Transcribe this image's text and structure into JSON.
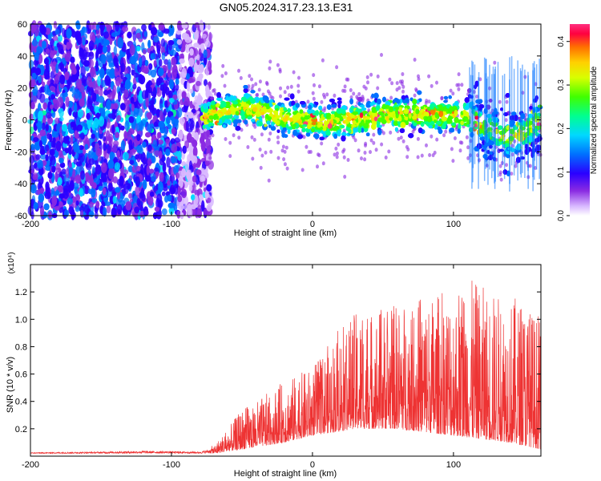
{
  "figure": {
    "title": "GN05.2024.317.23.13.E31"
  },
  "chart_data": [
    {
      "type": "heatmap",
      "xlabel": "Height of straight line (km)",
      "ylabel": "Frequency (Hz)",
      "xlim": [
        -200,
        162
      ],
      "ylim": [
        -60,
        60
      ],
      "x_ticks": [
        -200,
        -100,
        0,
        100
      ],
      "y_ticks": [
        -60,
        -40,
        -20,
        0,
        20,
        40,
        60
      ],
      "colorbar": {
        "label": "Normalized spectral amplitude",
        "range": [
          0,
          0.44
        ],
        "ticks": [
          0.0,
          0.1,
          0.2,
          0.3,
          0.4
        ],
        "colormap": "rainbow"
      },
      "ridge": {
        "x": [
          -200,
          -150,
          -100,
          -75,
          -65,
          -50,
          -35,
          -20,
          -5,
          10,
          30,
          60,
          90,
          110,
          125,
          140,
          150,
          162
        ],
        "y": [
          0,
          0,
          0,
          2,
          5,
          8,
          5,
          1,
          0,
          -2,
          0,
          4,
          3,
          2,
          -5,
          -12,
          -8,
          0
        ]
      }
    },
    {
      "type": "line",
      "xlabel": "Height of straight line (km)",
      "ylabel": "SNR (10 * v/v)",
      "exponent_label": "(x10⁴)",
      "xlim": [
        -200,
        162
      ],
      "ylim": [
        0,
        1.4
      ],
      "x_ticks": [
        -200,
        -100,
        0,
        100
      ],
      "y_ticks": [
        0.2,
        0.4,
        0.6,
        0.8,
        1.0,
        1.2
      ],
      "color": "#ee3333",
      "envelope": {
        "x": [
          -200,
          -150,
          -120,
          -80,
          -70,
          -60,
          -50,
          -40,
          -20,
          0,
          10,
          20,
          30,
          50,
          70,
          90,
          110,
          130,
          150,
          162
        ],
        "y": [
          0.03,
          0.04,
          0.05,
          0.04,
          0.08,
          0.2,
          0.35,
          0.4,
          0.55,
          0.65,
          0.8,
          0.95,
          1.05,
          1.1,
          1.15,
          1.2,
          1.3,
          1.2,
          1.15,
          1.0
        ]
      },
      "floor": {
        "x": [
          -200,
          -70,
          -50,
          -20,
          0,
          30,
          60,
          100,
          140,
          162
        ],
        "y": [
          0.02,
          0.02,
          0.05,
          0.1,
          0.15,
          0.2,
          0.2,
          0.15,
          0.1,
          0.05
        ]
      }
    }
  ],
  "colors": {
    "line": "#ee3333",
    "axes": "#000000",
    "background": "#ffffff"
  }
}
